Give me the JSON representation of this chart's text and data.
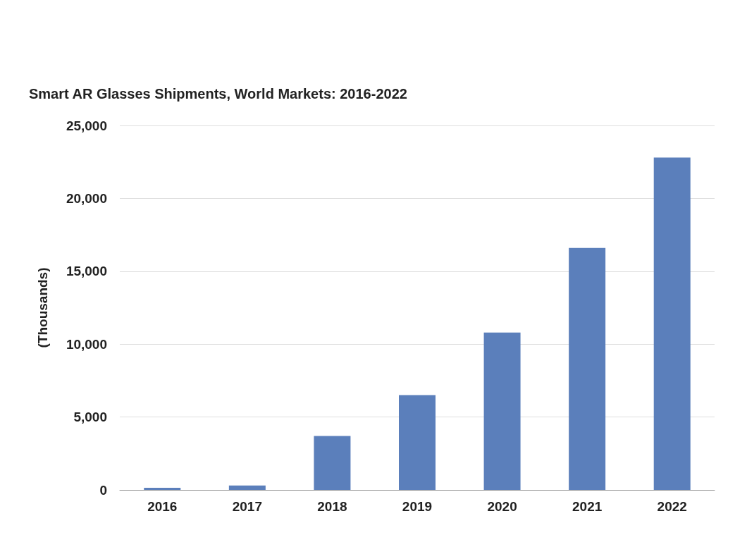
{
  "chart_data": {
    "type": "bar",
    "title": "Smart AR Glasses Shipments, World Markets: 2016-2022",
    "ylabel": "(Thousands)",
    "categories": [
      "2016",
      "2017",
      "2018",
      "2019",
      "2020",
      "2021",
      "2022"
    ],
    "values": [
      150,
      300,
      3700,
      6500,
      10800,
      16600,
      22800
    ],
    "color": "#5b7fbb",
    "ylim": [
      0,
      25000
    ],
    "yticks": [
      0,
      {
        "value": 5000,
        "label": "5,000"
      },
      {
        "value": 10000,
        "label": "10,000"
      },
      {
        "value": 15000,
        "label": "15,000"
      },
      {
        "value": 20000,
        "label": "20,000"
      },
      {
        "value": 25000,
        "label": "25,000"
      }
    ],
    "grid": "y"
  }
}
